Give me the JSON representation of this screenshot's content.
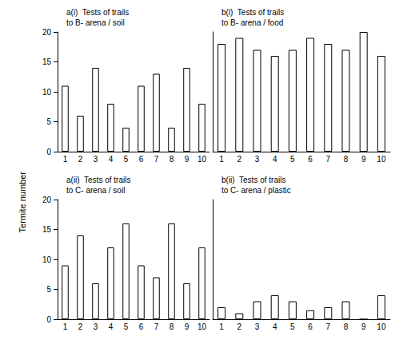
{
  "ylabel": "Termite number",
  "chart_data": [
    {
      "type": "bar",
      "title": "a(i)  Tests of trails\nto B- arena / soil",
      "categories": [
        "1",
        "2",
        "3",
        "4",
        "5",
        "6",
        "7",
        "8",
        "9",
        "10"
      ],
      "values": [
        11,
        6,
        14,
        8,
        4,
        11,
        13,
        4,
        14,
        8
      ],
      "color": "#ffffff",
      "ylim": [
        0,
        20
      ],
      "yticks": [
        0,
        5,
        10,
        15,
        20
      ],
      "grid": false
    },
    {
      "type": "bar",
      "title": "b(i)  Tests of trails\nto B- arena / food",
      "categories": [
        "1",
        "2",
        "3",
        "4",
        "5",
        "6",
        "7",
        "8",
        "9",
        "10"
      ],
      "values": [
        18,
        19,
        17,
        16,
        17,
        19,
        18,
        17,
        20,
        16
      ],
      "color": "#ffffff",
      "ylim": [
        0,
        20
      ],
      "yticks": [
        0,
        5,
        10,
        15,
        20
      ],
      "grid": false,
      "tick_labels": "x"
    },
    {
      "type": "bar",
      "title": "a(ii)  Tests of trails\nto C- arena / soil",
      "categories": [
        "1",
        "2",
        "3",
        "4",
        "5",
        "6",
        "7",
        "8",
        "9",
        "10"
      ],
      "values": [
        9,
        14,
        6,
        12,
        16,
        9,
        7,
        16,
        6,
        12
      ],
      "color": "#ffffff",
      "ylim": [
        0,
        20
      ],
      "yticks": [
        0,
        5,
        10,
        15,
        20
      ],
      "grid": false
    },
    {
      "type": "bar",
      "title": "b(ii)  Tests of trails\nto C- arena / plastic",
      "categories": [
        "1",
        "2",
        "3",
        "4",
        "5",
        "6",
        "7",
        "8",
        "9",
        "10"
      ],
      "values": [
        2,
        1,
        3,
        4,
        3,
        1.5,
        2,
        3,
        0,
        4
      ],
      "color": "#ffffff",
      "ylim": [
        0,
        20
      ],
      "yticks": [
        0,
        5,
        10,
        15,
        20
      ],
      "grid": false,
      "tick_labels": "x"
    }
  ]
}
